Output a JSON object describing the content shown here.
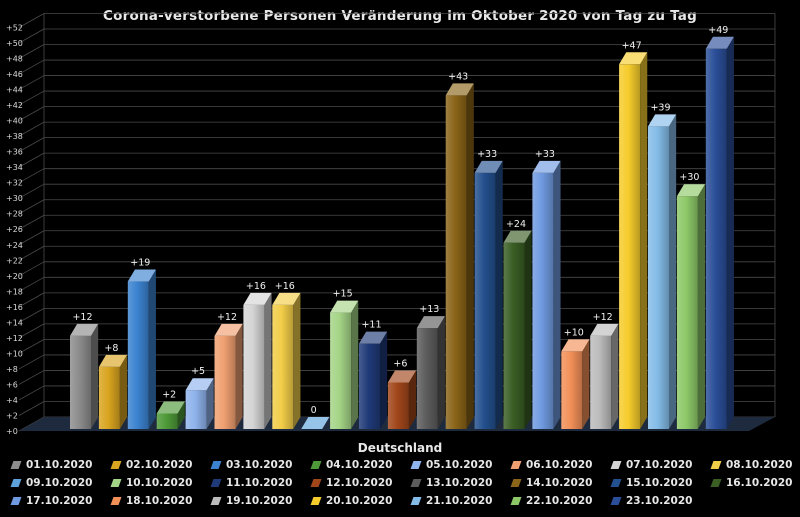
{
  "chart_data": {
    "type": "bar",
    "title": "Corona-verstorbene Personen Veränderung im Oktober 2020 von Tag zu Tag",
    "xlabel": "Deutschland",
    "ylabel": "",
    "ylim": [
      0,
      52
    ],
    "yticks": [
      "+0",
      "+2",
      "+4",
      "+6",
      "+8",
      "+10",
      "+12",
      "+14",
      "+16",
      "+18",
      "+20",
      "+22",
      "+24",
      "+26",
      "+28",
      "+30",
      "+32",
      "+34",
      "+36",
      "+38",
      "+40",
      "+42",
      "+44",
      "+46",
      "+48",
      "+50",
      "+52"
    ],
    "grid": true,
    "legend_position": "bottom",
    "categories": [
      "Deutschland"
    ],
    "series": [
      {
        "name": "01.10.2020",
        "value": 12,
        "label": "+12",
        "color": "#8c8c8c"
      },
      {
        "name": "02.10.2020",
        "value": 8,
        "label": "+8",
        "color": "#d9a520"
      },
      {
        "name": "03.10.2020",
        "value": 19,
        "label": "+19",
        "color": "#3b82d0"
      },
      {
        "name": "04.10.2020",
        "value": 2,
        "label": "+2",
        "color": "#4e9a38"
      },
      {
        "name": "05.10.2020",
        "value": 5,
        "label": "+5",
        "color": "#8fb3ec"
      },
      {
        "name": "06.10.2020",
        "value": 12,
        "label": "+12",
        "color": "#f0a070"
      },
      {
        "name": "07.10.2020",
        "value": 16,
        "label": "+16",
        "color": "#d4d4d4"
      },
      {
        "name": "08.10.2020",
        "value": 16,
        "label": "+16",
        "color": "#f2cd48"
      },
      {
        "name": "09.10.2020",
        "value": 0,
        "label": "0",
        "color": "#5ea2dc"
      },
      {
        "name": "10.10.2020",
        "value": 15,
        "label": "+15",
        "color": "#a4d486"
      },
      {
        "name": "11.10.2020",
        "value": 11,
        "label": "+11",
        "color": "#1f3a78"
      },
      {
        "name": "12.10.2020",
        "value": 6,
        "label": "+6",
        "color": "#a1461a"
      },
      {
        "name": "13.10.2020",
        "value": 13,
        "label": "+13",
        "color": "#5c5c5c"
      },
      {
        "name": "14.10.2020",
        "value": 43,
        "label": "+43",
        "color": "#8a6418"
      },
      {
        "name": "15.10.2020",
        "value": 33,
        "label": "+33",
        "color": "#23508e"
      },
      {
        "name": "16.10.2020",
        "value": 24,
        "label": "+24",
        "color": "#3a5e24"
      },
      {
        "name": "17.10.2020",
        "value": 33,
        "label": "+33",
        "color": "#6f9ae0"
      },
      {
        "name": "18.10.2020",
        "value": 10,
        "label": "+10",
        "color": "#f29058"
      },
      {
        "name": "19.10.2020",
        "value": 12,
        "label": "+12",
        "color": "#bcbcbc"
      },
      {
        "name": "20.10.2020",
        "value": 47,
        "label": "+47",
        "color": "#f5cc2c"
      },
      {
        "name": "21.10.2020",
        "value": 39,
        "label": "+39",
        "color": "#84bce8"
      },
      {
        "name": "22.10.2020",
        "value": 30,
        "label": "+30",
        "color": "#8dc868"
      },
      {
        "name": "23.10.2020",
        "value": 49,
        "label": "+49",
        "color": "#2a4e98"
      }
    ]
  }
}
